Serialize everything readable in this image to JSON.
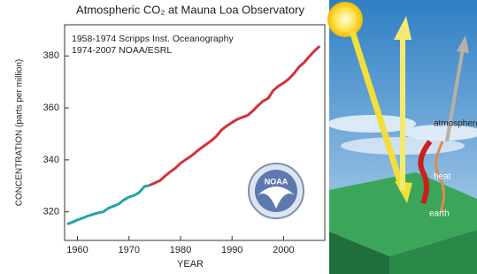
{
  "chart_data": {
    "type": "line",
    "title": "Atmospheric CO₂ at Mauna Loa Observatory",
    "x_label": "YEAR",
    "y_label": "CONCENTRATION (parts per million)",
    "logo": "NOAA",
    "series": [
      {
        "name": "1958-1974 Scripps Inst. Oceanography",
        "color": "#23a3a8",
        "x": [
          1958,
          1959,
          1960,
          1961,
          1962,
          1963,
          1964,
          1965,
          1966,
          1967,
          1968,
          1969,
          1970,
          1971,
          1972,
          1973,
          1974
        ],
        "values": [
          315.3,
          316.0,
          316.9,
          317.6,
          318.4,
          319.0,
          319.6,
          320.0,
          321.4,
          322.2,
          323.0,
          324.6,
          325.7,
          326.3,
          327.5,
          329.7,
          330.2
        ]
      },
      {
        "name": "1974-2007 NOAA/ESRL",
        "color": "#d3323a",
        "x": [
          1974,
          1975,
          1976,
          1977,
          1978,
          1979,
          1980,
          1981,
          1982,
          1983,
          1984,
          1985,
          1986,
          1987,
          1988,
          1989,
          1990,
          1991,
          1992,
          1993,
          1994,
          1995,
          1996,
          1997,
          1998,
          1999,
          2000,
          2001,
          2002,
          2003,
          2004,
          2005,
          2006,
          2007
        ],
        "values": [
          330.2,
          331.1,
          332.0,
          333.8,
          335.4,
          336.8,
          338.7,
          340.1,
          341.4,
          343.0,
          344.6,
          346.0,
          347.4,
          349.2,
          351.6,
          353.1,
          354.4,
          355.6,
          356.4,
          357.1,
          358.8,
          360.8,
          362.6,
          363.7,
          366.7,
          368.4,
          369.6,
          371.1,
          373.2,
          375.8,
          377.5,
          379.8,
          381.9,
          383.8
        ]
      }
    ],
    "xlim": [
      1957.5,
      2008
    ],
    "xticks": [
      1960,
      1970,
      1980,
      1990,
      2000
    ],
    "ylim": [
      309,
      392
    ],
    "yticks": [
      320,
      340,
      360,
      380
    ]
  },
  "diagram": {
    "labels": [
      "atmosphere",
      "heat",
      "earth"
    ]
  }
}
